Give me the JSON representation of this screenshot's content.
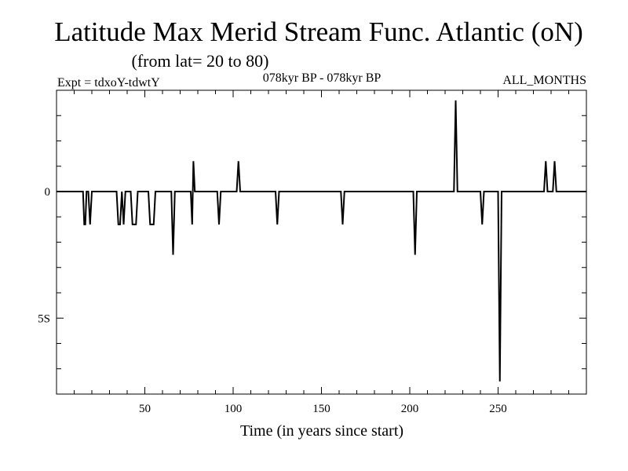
{
  "chart_data": {
    "type": "line",
    "title": "Latitude Max Merid Stream Func. Atlantic (oN)",
    "subtitle": "(from lat= 20 to 80)",
    "header_left": "Expt = tdxoY-tdwtY",
    "header_center": "078kyr BP - 078kyr BP",
    "header_right": "ALL_MONTHS",
    "xlabel": "Time (in years since start)",
    "ylabel": "",
    "xlim": [
      0,
      300
    ],
    "ylim": [
      -8,
      4
    ],
    "x_ticks": [
      50,
      100,
      150,
      200,
      250
    ],
    "x_tick_labels": [
      "50",
      "100",
      "150",
      "200",
      "250"
    ],
    "y_tick_labels": [
      {
        "value": 0,
        "label": "0"
      },
      {
        "value": -5,
        "label": "5S"
      }
    ],
    "series": [
      {
        "x": [
          0,
          15,
          15.7,
          16.3,
          17,
          18,
          19,
          20,
          21,
          34,
          35,
          36,
          37,
          38,
          39,
          40,
          42,
          43,
          44,
          45,
          46,
          47,
          48,
          52,
          53,
          54,
          55,
          56,
          65,
          66,
          67,
          76,
          76.8,
          77.5,
          78.3,
          79,
          91,
          92,
          93,
          102,
          103,
          104,
          124,
          125,
          126,
          161,
          162,
          163,
          202,
          203,
          204,
          225,
          226,
          227,
          240,
          241,
          242,
          250,
          251,
          252,
          276,
          277,
          278,
          281,
          282,
          283,
          300
        ],
        "y": [
          0,
          0,
          -1.3,
          -1.3,
          0,
          0,
          -1.3,
          0,
          0,
          0,
          -1.3,
          -1.3,
          0,
          -1.3,
          0,
          0,
          0,
          -1.3,
          -1.3,
          -1.3,
          0,
          0,
          0,
          0,
          -1.3,
          -1.3,
          -1.3,
          0,
          0,
          -2.5,
          0,
          0,
          -1.3,
          1.2,
          0,
          0,
          0,
          -1.3,
          0,
          0,
          1.2,
          0,
          0,
          -1.3,
          0,
          0,
          -1.3,
          0,
          0,
          -2.5,
          0,
          0,
          3.6,
          0,
          0,
          -1.3,
          0,
          0,
          -7.5,
          0,
          0,
          1.2,
          0,
          0,
          1.2,
          0,
          0
        ]
      }
    ]
  }
}
